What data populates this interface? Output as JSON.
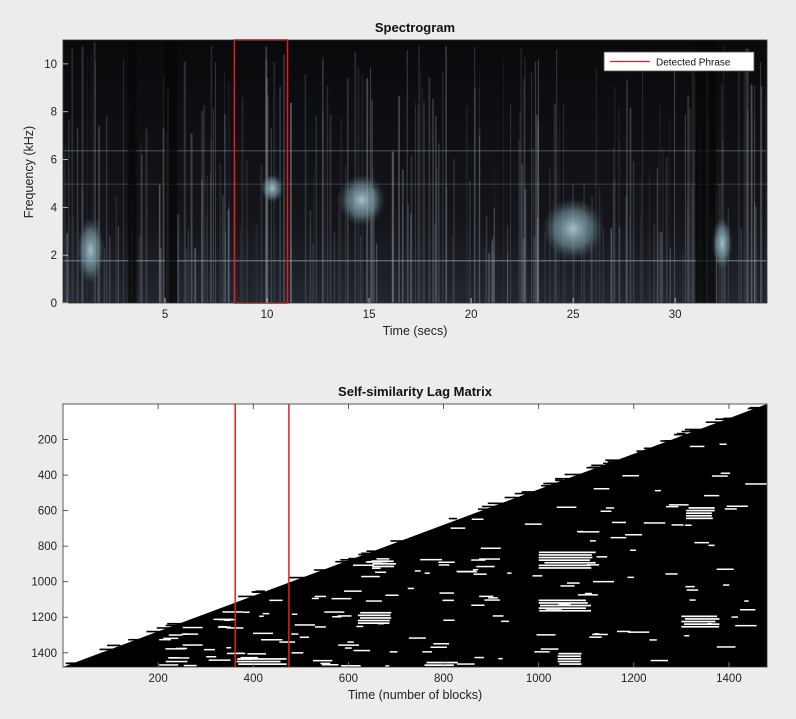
{
  "chart_data": [
    {
      "type": "heatmap",
      "title": "Spectrogram",
      "xlabel": "Time (secs)",
      "ylabel": "Frequency (kHz)",
      "xlim": [
        0,
        34.5
      ],
      "ylim": [
        0,
        11
      ],
      "xticks": [
        5,
        10,
        15,
        20,
        25,
        30
      ],
      "yticks": [
        0,
        2,
        4,
        6,
        8,
        10
      ],
      "colormap": "bone (dark background, light-blue highlights)",
      "grid": false,
      "legend": {
        "placement": "top-right",
        "entries": [
          "Detected Phrase"
        ]
      },
      "annotations": [
        {
          "label": "Detected Phrase",
          "shape": "rectangle",
          "color": "#e02020",
          "x_range": [
            8.4,
            11.0
          ],
          "y_range": [
            0,
            11
          ]
        }
      ],
      "bright_regions": [
        {
          "x_range": [
            0.7,
            2.0
          ],
          "y_range": [
            0.8,
            3.6
          ]
        },
        {
          "x_range": [
            9.7,
            10.8
          ],
          "y_range": [
            4.2,
            5.4
          ]
        },
        {
          "x_range": [
            13.5,
            15.8
          ],
          "y_range": [
            3.2,
            5.4
          ]
        },
        {
          "x_range": [
            23.5,
            26.5
          ],
          "y_range": [
            1.8,
            4.4
          ]
        },
        {
          "x_range": [
            31.8,
            32.8
          ],
          "y_range": [
            1.4,
            3.6
          ]
        }
      ]
    },
    {
      "type": "heatmap",
      "title": "Self-similarity Lag Matrix",
      "xlabel": "Time (number of blocks)",
      "ylabel": "",
      "xlim": [
        0,
        1480
      ],
      "ylim": [
        1480,
        0
      ],
      "xticks": [
        200,
        400,
        600,
        800,
        1000,
        1200,
        1400
      ],
      "yticks": [
        200,
        400,
        600,
        800,
        1000,
        1200,
        1400
      ],
      "colormap": "binary (white = similar)",
      "grid": false,
      "boundary": {
        "from": [
          0,
          1480
        ],
        "to": [
          1480,
          0
        ]
      },
      "annotations": [
        {
          "shape": "vertical-lines",
          "color": "#e02020",
          "x": [
            362,
            475
          ]
        }
      ],
      "white_blobs": [
        {
          "x_range": [
            365,
            470
          ],
          "y_range": [
            1430,
            1460
          ]
        },
        {
          "x_range": [
            620,
            690
          ],
          "y_range": [
            1170,
            1240
          ]
        },
        {
          "x_range": [
            650,
            700
          ],
          "y_range": [
            880,
            920
          ]
        },
        {
          "x_range": [
            1000,
            1120
          ],
          "y_range": [
            830,
            920
          ]
        },
        {
          "x_range": [
            1000,
            1110
          ],
          "y_range": [
            1100,
            1170
          ]
        },
        {
          "x_range": [
            1310,
            1370
          ],
          "y_range": [
            580,
            650
          ]
        },
        {
          "x_range": [
            1300,
            1380
          ],
          "y_range": [
            1190,
            1260
          ]
        },
        {
          "x_range": [
            760,
            830
          ],
          "y_range": [
            1450,
            1480
          ]
        },
        {
          "x_range": [
            1040,
            1090
          ],
          "y_range": [
            1400,
            1470
          ]
        }
      ]
    }
  ]
}
